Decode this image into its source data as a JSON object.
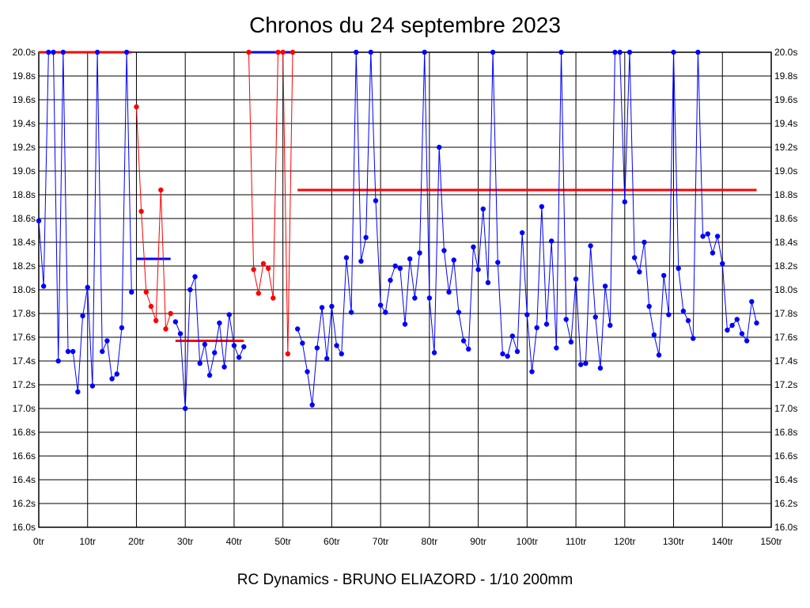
{
  "title": "Chronos du 24 septembre 2023",
  "footer": "RC Dynamics - BRUNO ELIAZORD - 1/10 200mm",
  "chart_data": {
    "type": "line",
    "x_ticks": [
      "0tr",
      "10tr",
      "20tr",
      "30tr",
      "40tr",
      "50tr",
      "60tr",
      "70tr",
      "80tr",
      "90tr",
      "100tr",
      "110tr",
      "120tr",
      "130tr",
      "140tr",
      "150tr"
    ],
    "y_ticks": [
      "16.0s",
      "16.2s",
      "16.4s",
      "16.6s",
      "16.8s",
      "17.0s",
      "17.2s",
      "17.4s",
      "17.6s",
      "17.8s",
      "18.0s",
      "18.2s",
      "18.4s",
      "18.6s",
      "18.8s",
      "19.0s",
      "19.2s",
      "19.4s",
      "19.6s",
      "19.8s",
      "20.0s"
    ],
    "xlim": [
      0,
      150
    ],
    "ylim": [
      16.0,
      20.0
    ],
    "grid": true,
    "colors": {
      "blue": "#0000ff",
      "red": "#ff0000",
      "grid": "#000000"
    },
    "series": [
      {
        "color": "#0000ff",
        "x": [
          0,
          1,
          2,
          3,
          4,
          5,
          6,
          7,
          8,
          9,
          10,
          11,
          12,
          13,
          14,
          15,
          16,
          17,
          18,
          19
        ],
        "values": [
          18.58,
          18.03,
          20.0,
          20.0,
          17.4,
          20.0,
          17.48,
          17.48,
          17.14,
          17.78,
          18.02,
          17.19,
          20.0,
          17.48,
          17.57,
          17.25,
          17.29,
          17.68,
          20.0,
          17.98
        ]
      },
      {
        "color": "#ff0000",
        "x": [
          20,
          21,
          22,
          23,
          24,
          25,
          26,
          27
        ],
        "values": [
          19.54,
          18.66,
          17.98,
          17.86,
          17.74,
          18.84,
          17.67,
          17.8
        ]
      },
      {
        "color": "#0000ff",
        "x": [
          28,
          29,
          30,
          31,
          32,
          33,
          34,
          35,
          36,
          37,
          38,
          39,
          40,
          41,
          42
        ],
        "values": [
          17.73,
          17.63,
          17.0,
          18.0,
          18.11,
          17.38,
          17.54,
          17.28,
          17.47,
          17.72,
          17.35,
          17.79,
          17.53,
          17.43,
          17.52
        ]
      },
      {
        "color": "#ff0000",
        "x": [
          43,
          44,
          45,
          46,
          47,
          48,
          49,
          50,
          51,
          52
        ],
        "values": [
          20.0,
          18.17,
          17.97,
          18.22,
          18.18,
          17.93,
          20.0,
          20.0,
          17.46,
          20.0
        ]
      },
      {
        "color": "#0000ff",
        "x": [
          53,
          54,
          55,
          56,
          57,
          58,
          59,
          60,
          61,
          62,
          63,
          64,
          65,
          66,
          67,
          68,
          69,
          70,
          71,
          72,
          73,
          74,
          75,
          76,
          77,
          78,
          79,
          80,
          81,
          82,
          83,
          84,
          85,
          86,
          87,
          88,
          89,
          90,
          91,
          92,
          93,
          94,
          95,
          96,
          97,
          98,
          99,
          100,
          101,
          102,
          103,
          104,
          105,
          106,
          107,
          108,
          109,
          110,
          111,
          112,
          113,
          114,
          115,
          116,
          117,
          118,
          119,
          120,
          121,
          122,
          123,
          124,
          125,
          126,
          127,
          128,
          129,
          130,
          131,
          132,
          133,
          134,
          135,
          136,
          137,
          138,
          139,
          140,
          141,
          142,
          143,
          144,
          145,
          146,
          147
        ],
        "values": [
          17.67,
          17.55,
          17.31,
          17.03,
          17.51,
          17.85,
          17.42,
          17.86,
          17.53,
          17.46,
          18.27,
          17.81,
          20.0,
          18.24,
          18.44,
          20.0,
          18.75,
          17.87,
          17.81,
          18.08,
          18.2,
          18.18,
          17.71,
          18.26,
          17.93,
          18.31,
          20.0,
          17.93,
          17.47,
          19.2,
          18.33,
          17.98,
          18.25,
          17.81,
          17.57,
          17.5,
          18.36,
          18.17,
          18.68,
          18.06,
          20.0,
          18.23,
          17.46,
          17.44,
          17.61,
          17.48,
          18.48,
          17.79,
          17.31,
          17.68,
          18.7,
          17.71,
          18.41,
          17.51,
          20.0,
          17.75,
          17.56,
          18.09,
          17.37,
          17.38,
          18.37,
          17.77,
          17.34,
          18.03,
          17.7,
          20.0,
          20.0,
          18.74,
          20.0,
          18.27,
          18.15,
          18.4,
          17.86,
          17.62,
          17.45,
          18.12,
          17.79,
          20.0,
          18.18,
          17.82,
          17.74,
          17.59,
          20.0,
          18.45,
          18.47,
          18.31,
          18.45,
          18.22,
          17.66,
          17.7,
          17.75,
          17.63,
          17.57,
          17.9,
          17.72
        ]
      }
    ],
    "hlines": [
      {
        "color": "#ff0000",
        "x": [
          0,
          19
        ],
        "y": 20.0
      },
      {
        "color": "#0000ff",
        "x": [
          20,
          27
        ],
        "y": 18.26
      },
      {
        "color": "#ff0000",
        "x": [
          28,
          42
        ],
        "y": 17.57
      },
      {
        "color": "#0000ff",
        "x": [
          43,
          52
        ],
        "y": 20.0
      },
      {
        "color": "#ff0000",
        "x": [
          53,
          147
        ],
        "y": 18.84
      }
    ]
  }
}
